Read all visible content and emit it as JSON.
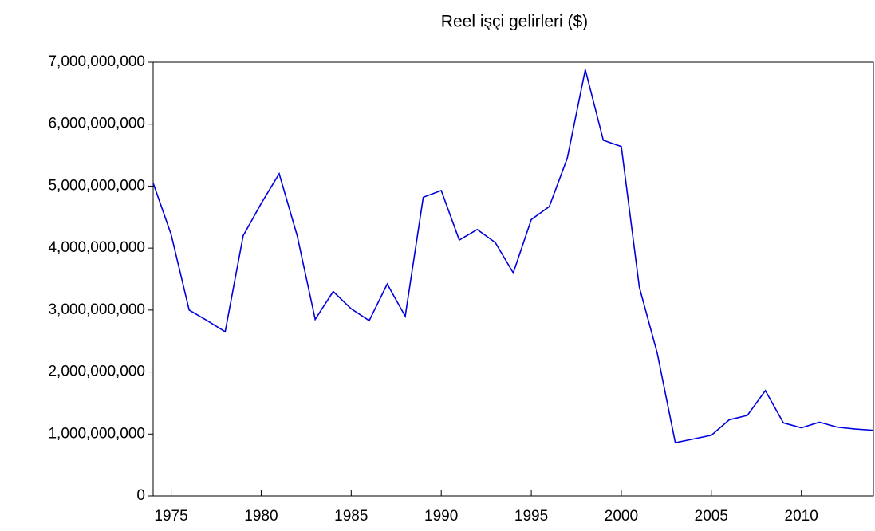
{
  "chart_data": {
    "type": "line",
    "title": "Reel işçi gelirleri ($)",
    "x": [
      1974,
      1975,
      1976,
      1977,
      1978,
      1979,
      1980,
      1981,
      1982,
      1983,
      1984,
      1985,
      1986,
      1987,
      1988,
      1989,
      1990,
      1991,
      1992,
      1993,
      1994,
      1995,
      1996,
      1997,
      1998,
      1999,
      2000,
      2001,
      2002,
      2003,
      2004,
      2005,
      2006,
      2007,
      2008,
      2009,
      2010,
      2011,
      2012,
      2013,
      2014
    ],
    "series": [
      {
        "name": "Reel işçi gelirleri ($)",
        "color": "#0000dd",
        "values": [
          5050000000,
          4220000000,
          3000000000,
          2830000000,
          2650000000,
          4200000000,
          4720000000,
          5200000000,
          4200000000,
          2850000000,
          3300000000,
          3020000000,
          2830000000,
          3420000000,
          2900000000,
          4820000000,
          4930000000,
          4130000000,
          4300000000,
          4090000000,
          3600000000,
          4460000000,
          4670000000,
          5450000000,
          6880000000,
          5740000000,
          5640000000,
          3370000000,
          2300000000,
          860000000,
          920000000,
          980000000,
          1230000000,
          1300000000,
          1700000000,
          1180000000,
          1100000000,
          1190000000,
          1110000000,
          1080000000,
          1060000000
        ]
      }
    ],
    "xlim": [
      1974,
      2014
    ],
    "xticks": [
      1975,
      1980,
      1985,
      1990,
      1995,
      2000,
      2005,
      2010
    ],
    "ylim": [
      0,
      7000000000
    ],
    "yticks": [
      0,
      {
        "value": 1000000000,
        "label": "1,000,000,000"
      },
      {
        "value": 2000000000,
        "label": "2,000,000,000"
      },
      {
        "value": 3000000000,
        "label": "3,000,000,000"
      },
      {
        "value": 4000000000,
        "label": "4,000,000,000"
      },
      {
        "value": 5000000000,
        "label": "5,000,000,000"
      },
      {
        "value": 6000000000,
        "label": "6,000,000,000"
      },
      {
        "value": 7000000000,
        "label": "7,000,000,000"
      }
    ],
    "grid": false
  }
}
